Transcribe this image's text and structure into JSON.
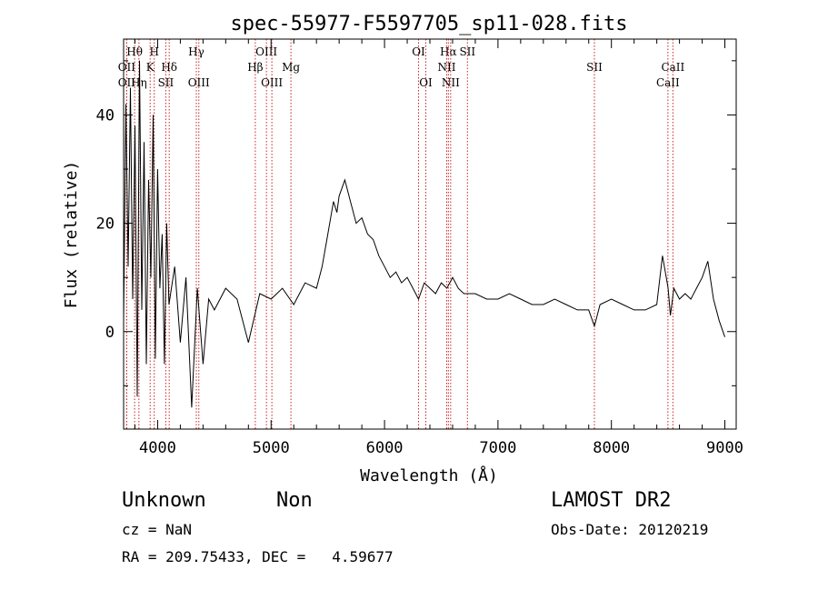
{
  "chart_data": {
    "type": "line",
    "title": "spec-55977-F5597705_sp11-028.fits",
    "xlabel": "Wavelength (Å)",
    "ylabel": "Flux (relative)",
    "xlim": [
      3700,
      9100
    ],
    "ylim": [
      -18,
      54
    ],
    "xticks": [
      4000,
      5000,
      6000,
      7000,
      8000,
      9000
    ],
    "yticks": [
      0,
      20,
      40
    ],
    "grid": false,
    "line_color": "#000000",
    "marker_color": "#cc2222",
    "spectrum": {
      "x": [
        3700,
        3720,
        3740,
        3760,
        3780,
        3800,
        3820,
        3840,
        3860,
        3880,
        3900,
        3920,
        3940,
        3960,
        3980,
        4000,
        4020,
        4040,
        4060,
        4080,
        4100,
        4150,
        4200,
        4250,
        4300,
        4350,
        4400,
        4450,
        4500,
        4600,
        4700,
        4800,
        4900,
        5000,
        5100,
        5200,
        5300,
        5400,
        5450,
        5500,
        5550,
        5580,
        5600,
        5650,
        5700,
        5750,
        5800,
        5850,
        5900,
        5950,
        6000,
        6050,
        6100,
        6150,
        6200,
        6250,
        6300,
        6350,
        6400,
        6450,
        6500,
        6550,
        6600,
        6650,
        6700,
        6800,
        6900,
        7000,
        7100,
        7200,
        7300,
        7400,
        7500,
        7600,
        7700,
        7800,
        7850,
        7900,
        8000,
        8100,
        8200,
        8300,
        8400,
        8450,
        8500,
        8520,
        8550,
        8600,
        8650,
        8700,
        8750,
        8800,
        8850,
        8900,
        8950,
        9000
      ],
      "y": [
        2,
        42,
        12,
        45,
        6,
        38,
        -12,
        50,
        4,
        35,
        -6,
        28,
        10,
        40,
        -5,
        30,
        8,
        18,
        -6,
        20,
        5,
        12,
        -2,
        10,
        -14,
        8,
        -6,
        6,
        4,
        8,
        6,
        -2,
        7,
        6,
        8,
        5,
        9,
        8,
        12,
        18,
        24,
        22,
        25,
        28,
        24,
        20,
        21,
        18,
        17,
        14,
        12,
        10,
        11,
        9,
        10,
        8,
        6,
        9,
        8,
        7,
        9,
        8,
        10,
        8,
        7,
        7,
        6,
        6,
        7,
        6,
        5,
        5,
        6,
        5,
        4,
        4,
        1,
        5,
        6,
        5,
        4,
        4,
        5,
        14,
        8,
        3,
        8,
        6,
        7,
        6,
        8,
        10,
        13,
        6,
        2,
        -1
      ]
    },
    "lines": [
      {
        "label": "Hθ",
        "x": 3797,
        "row": 1
      },
      {
        "label": "H",
        "x": 3970,
        "row": 1
      },
      {
        "label": "Hγ",
        "x": 4341,
        "row": 1
      },
      {
        "label": "OIII",
        "x": 4959,
        "row": 1
      },
      {
        "label": "OI",
        "x": 6300,
        "row": 1
      },
      {
        "label": "Hα",
        "x": 6563,
        "row": 1
      },
      {
        "label": "SII",
        "x": 6731,
        "row": 1
      },
      {
        "label": "OII",
        "x": 3727,
        "row": 2
      },
      {
        "label": "K",
        "x": 3934,
        "row": 2
      },
      {
        "label": "Hδ",
        "x": 4102,
        "row": 2
      },
      {
        "label": "Hβ",
        "x": 4861,
        "row": 2
      },
      {
        "label": "Mg",
        "x": 5175,
        "row": 2
      },
      {
        "label": "NII",
        "x": 6548,
        "row": 2
      },
      {
        "label": "SII",
        "x": 7850,
        "row": 2
      },
      {
        "label": "CaII",
        "x": 8542,
        "row": 2
      },
      {
        "label": "OII",
        "x": 3727,
        "row": 3
      },
      {
        "label": "Hη",
        "x": 3835,
        "row": 3
      },
      {
        "label": "SII",
        "x": 4072,
        "row": 3
      },
      {
        "label": "OIII",
        "x": 4363,
        "row": 3
      },
      {
        "label": "OIII",
        "x": 5007,
        "row": 3
      },
      {
        "label": "OI",
        "x": 6364,
        "row": 3
      },
      {
        "label": "NII",
        "x": 6583,
        "row": 3
      },
      {
        "label": "CaII",
        "x": 8498,
        "row": 3
      }
    ]
  },
  "info": {
    "classification": "Unknown",
    "subclass": "Non",
    "survey": "LAMOST DR2",
    "redshift": "cz = NaN",
    "obs_date": "Obs-Date: 20120219",
    "coords": "RA = 209.75433, DEC =   4.59677"
  }
}
